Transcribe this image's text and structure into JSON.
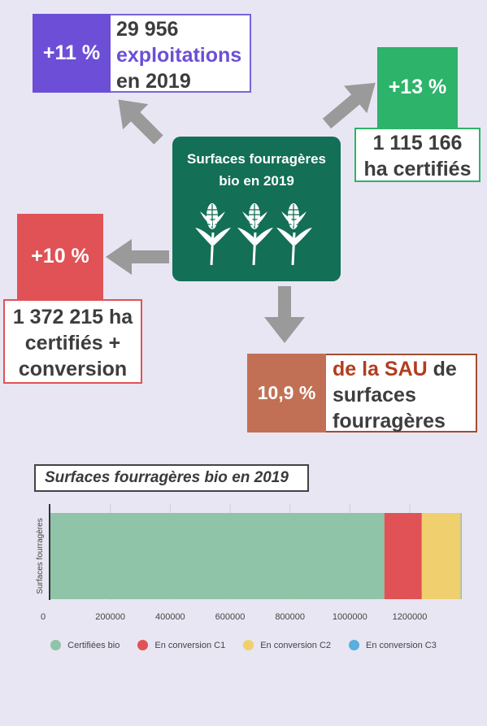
{
  "stats": {
    "exploitations": {
      "pct": "+11 %",
      "line1": "29 956",
      "line2": "exploitations",
      "line3": "en 2019",
      "color": "#6c4fd6"
    },
    "certified": {
      "pct": "+13 %",
      "line1": "1 115 166",
      "line2": "ha certifiés",
      "color": "#2db36a"
    },
    "conversion": {
      "pct": "+10 %",
      "line1": "1 372 215 ha",
      "line2": "certifiés +",
      "line3": "conversion",
      "color": "#e05256"
    },
    "sau": {
      "pct": "10,9 %",
      "line1a": "de la SAU",
      "line1b": " de",
      "line2": "surfaces",
      "line3": "fourragères",
      "color": "#c27055",
      "highlight": "#b33c1f"
    }
  },
  "center": {
    "title_line1": "Surfaces fourragères",
    "title_line2": "bio en 2019",
    "icon": "corn-icon",
    "color": "#136f55"
  },
  "chart_data": {
    "type": "bar",
    "orientation": "horizontal-stacked",
    "title": "Surfaces fourragères bio en 2019",
    "categories": [
      "Surfaces fourragères"
    ],
    "series": [
      {
        "name": "Certifiées bio",
        "values": [
          1115166
        ],
        "color": "#8fc4a9"
      },
      {
        "name": "En conversion C1",
        "values": [
          125000
        ],
        "color": "#e05256"
      },
      {
        "name": "En conversion C2",
        "values": [
          130000
        ],
        "color": "#f0cf6e"
      },
      {
        "name": "En conversion C3",
        "values": [
          2049
        ],
        "color": "#5aaee0"
      }
    ],
    "xticks": [
      "0",
      "200000",
      "400000",
      "600000",
      "800000",
      "1000000",
      "1200000"
    ],
    "xlim": [
      0,
      1390000
    ],
    "grid": true,
    "legend": "bottom"
  }
}
